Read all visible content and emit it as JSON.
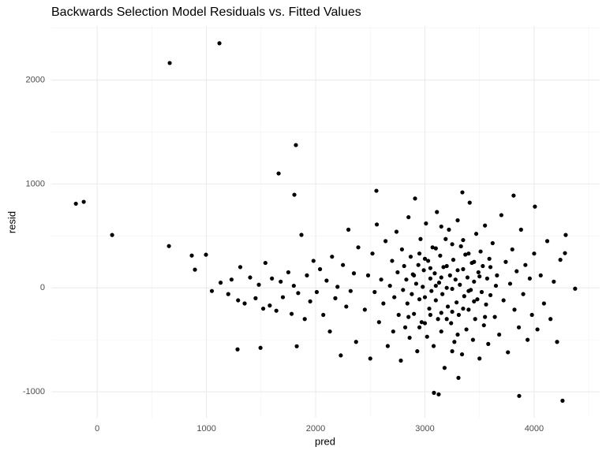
{
  "chart_data": {
    "type": "scatter",
    "title": "Backwards Selection Model Residuals vs. Fitted Values",
    "x_label": "pred",
    "y_label": "resid",
    "xlim": [
      -420,
      4600
    ],
    "ylim": [
      -1250,
      2520
    ],
    "xticks": [
      0,
      1000,
      2000,
      3000,
      4000
    ],
    "yticks": [
      -1000,
      0,
      1000,
      2000
    ],
    "x_minor_ticks": [
      500,
      1500,
      2500,
      3500,
      4500
    ],
    "y_minor_ticks": [
      -500,
      500,
      1500,
      2500
    ],
    "grid": true,
    "color": "#000000",
    "x": [
      -195,
      -123,
      137,
      664,
      1119,
      657,
      866,
      996,
      895,
      1819,
      1661,
      1805,
      1285,
      1495,
      1827,
      3083,
      3126,
      3307,
      3863,
      4260,
      4375,
      4289,
      4282,
      4007,
      2556,
      3343,
      3812,
      1050,
      1130,
      1200,
      1230,
      1290,
      1310,
      1350,
      1400,
      1450,
      1480,
      1520,
      1540,
      1580,
      1600,
      1640,
      1680,
      1700,
      1750,
      1780,
      1800,
      1840,
      1870,
      1900,
      1920,
      1950,
      1980,
      2010,
      2040,
      2070,
      2100,
      2130,
      2150,
      2180,
      2200,
      2230,
      2250,
      2280,
      2300,
      2320,
      2350,
      2370,
      2390,
      2450,
      2480,
      2500,
      2520,
      2540,
      2560,
      2580,
      2600,
      2620,
      2640,
      2660,
      2680,
      2700,
      2710,
      2720,
      2740,
      2750,
      2760,
      2780,
      2790,
      2800,
      2810,
      2820,
      2830,
      2840,
      2850,
      2860,
      2870,
      2880,
      2890,
      2900,
      2910,
      2920,
      2930,
      2940,
      2950,
      2960,
      2970,
      2980,
      2990,
      3000,
      3010,
      3020,
      3030,
      3040,
      3050,
      3060,
      3070,
      3080,
      3090,
      3100,
      3110,
      3120,
      3130,
      3140,
      3150,
      3160,
      3170,
      3180,
      3190,
      3200,
      3210,
      3220,
      3230,
      3240,
      3250,
      3260,
      3270,
      3280,
      3290,
      3300,
      3310,
      3320,
      3330,
      3340,
      3350,
      3360,
      3370,
      3380,
      3390,
      3400,
      3410,
      3420,
      3430,
      3440,
      3450,
      3460,
      3470,
      3480,
      3490,
      3500,
      3510,
      3520,
      3530,
      3540,
      3550,
      3560,
      3570,
      3580,
      3590,
      3600,
      3620,
      3640,
      3660,
      3680,
      3700,
      3720,
      3740,
      3760,
      3780,
      3800,
      3820,
      3840,
      3860,
      3880,
      3900,
      3920,
      3940,
      3960,
      3980,
      4000,
      4030,
      4060,
      4090,
      4120,
      4150,
      4180,
      4210,
      4240,
      2900,
      2950,
      3000,
      3050,
      3100,
      3150,
      3200,
      3250,
      3300,
      3350,
      3400,
      3450,
      3500,
      3250,
      3150,
      3050,
      2950,
      2850,
      3350,
      3450,
      3550,
      3650,
      3150,
      3250,
      3100,
      3200,
      3300,
      3000,
      3400,
      3600
    ],
    "values": [
      810,
      828,
      509,
      2164,
      2354,
      402,
      311,
      319,
      175,
      1374,
      1101,
      896,
      -592,
      -577,
      -562,
      -1010,
      -1025,
      -866,
      -1040,
      -1086,
      -8,
      509,
      334,
      782,
      934,
      919,
      888,
      -30,
      50,
      -60,
      80,
      -120,
      200,
      -150,
      100,
      -100,
      30,
      -200,
      240,
      -170,
      90,
      -220,
      60,
      -90,
      150,
      -250,
      20,
      -50,
      510,
      -300,
      120,
      -130,
      260,
      -40,
      180,
      -260,
      70,
      -420,
      300,
      -100,
      10,
      -650,
      220,
      -180,
      560,
      -30,
      140,
      -520,
      390,
      -210,
      120,
      -680,
      330,
      -40,
      610,
      -330,
      80,
      -150,
      450,
      -560,
      20,
      260,
      -420,
      -90,
      540,
      150,
      -260,
      -700,
      370,
      -20,
      210,
      -380,
      80,
      -150,
      680,
      -480,
      300,
      -60,
      130,
      -250,
      860,
      40,
      -610,
      220,
      -110,
      470,
      -330,
      10,
      170,
      -90,
      620,
      -470,
      260,
      -200,
      90,
      -30,
      390,
      -560,
      140,
      -120,
      730,
      -300,
      50,
      310,
      -420,
      -60,
      200,
      -770,
      470,
      0,
      -180,
      560,
      120,
      -340,
      -10,
      270,
      -520,
      80,
      -140,
      650,
      -260,
      30,
      400,
      -640,
      180,
      -80,
      320,
      -400,
      100,
      -210,
      820,
      -20,
      240,
      -500,
      60,
      -300,
      520,
      -110,
      150,
      -680,
      350,
      -40,
      210,
      -360,
      600,
      -160,
      90,
      -540,
      280,
      -70,
      430,
      -280,
      120,
      -450,
      700,
      -120,
      250,
      -620,
      40,
      370,
      -210,
      160,
      -380,
      560,
      -60,
      220,
      -500,
      90,
      -260,
      330,
      -400,
      120,
      -150,
      450,
      -300,
      60,
      -520,
      270,
      120,
      -380,
      280,
      -260,
      380,
      100,
      -300,
      420,
      -450,
      -200,
      330,
      -130,
      110,
      -230,
      -240,
      190,
      330,
      -280,
      460,
      250,
      -280,
      20,
      590,
      -610,
      20,
      210,
      170,
      -340,
      -30,
      200
    ]
  }
}
